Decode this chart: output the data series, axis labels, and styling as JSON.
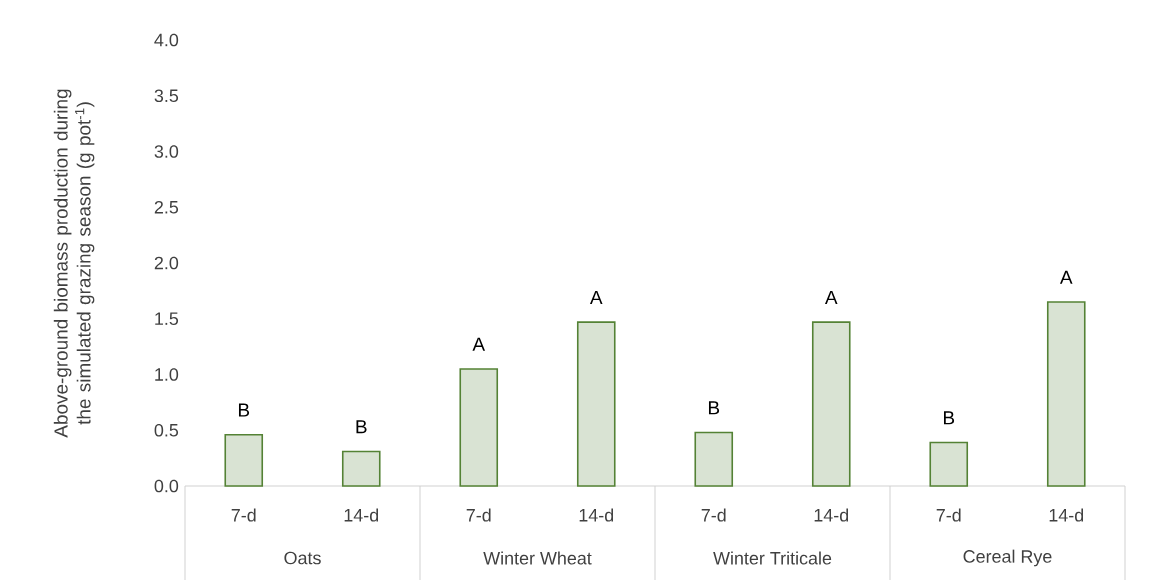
{
  "chart_data": {
    "type": "bar",
    "ylabel": "Above-ground biomass production during the simulated grazing season (g pot$^{-1}$)",
    "categories": [
      "7-d",
      "14-d",
      "7-d",
      "14-d",
      "7-d",
      "14-d",
      "7-d",
      "14-d"
    ],
    "values": [
      0.46,
      0.31,
      1.05,
      1.47,
      0.48,
      1.47,
      0.39,
      1.65
    ],
    "value_labels": [
      "B",
      "B",
      "A",
      "A",
      "B",
      "A",
      "B",
      "A"
    ],
    "color": "#548235",
    "ylim": [
      0,
      4.0
    ],
    "yticks": [
      {
        "value": 0,
        "label": "0.0"
      },
      {
        "value": 0.5,
        "label": "0.5"
      },
      {
        "value": 1.0,
        "label": "1.0"
      },
      {
        "value": 1.5,
        "label": "1.5"
      },
      {
        "value": 2.0,
        "label": "2.0"
      },
      {
        "value": 2.5,
        "label": "2.5"
      },
      {
        "value": 3.0,
        "label": "3.0"
      },
      {
        "value": 3.5,
        "label": "3.5"
      },
      {
        "value": 4.0,
        "label": "4.0"
      }
    ],
    "annotations": [
      "Oats",
      "Winter Wheat",
      "Winter Triticale",
      "Cereal Rye"
    ]
  }
}
